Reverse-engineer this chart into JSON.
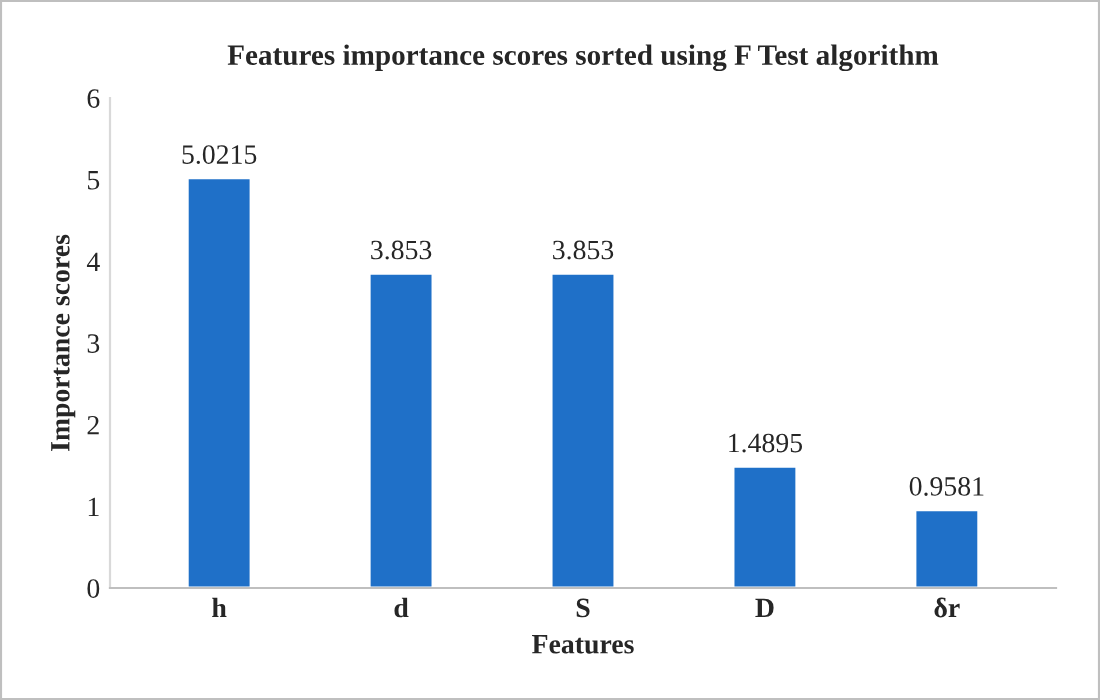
{
  "chart_data": {
    "type": "bar",
    "title": "Features importance scores sorted using F Test algorithm",
    "xlabel": "Features",
    "ylabel": "Importance scores",
    "categories": [
      "h",
      "d",
      "S",
      "D",
      "δr"
    ],
    "values": [
      5.0215,
      3.853,
      3.853,
      1.4895,
      0.9581
    ],
    "color": "#1f70c8",
    "ylim": [
      0,
      6
    ],
    "yticks": [
      0,
      1,
      2,
      3,
      4,
      5,
      6
    ],
    "grid": false,
    "data_labels": true
  }
}
